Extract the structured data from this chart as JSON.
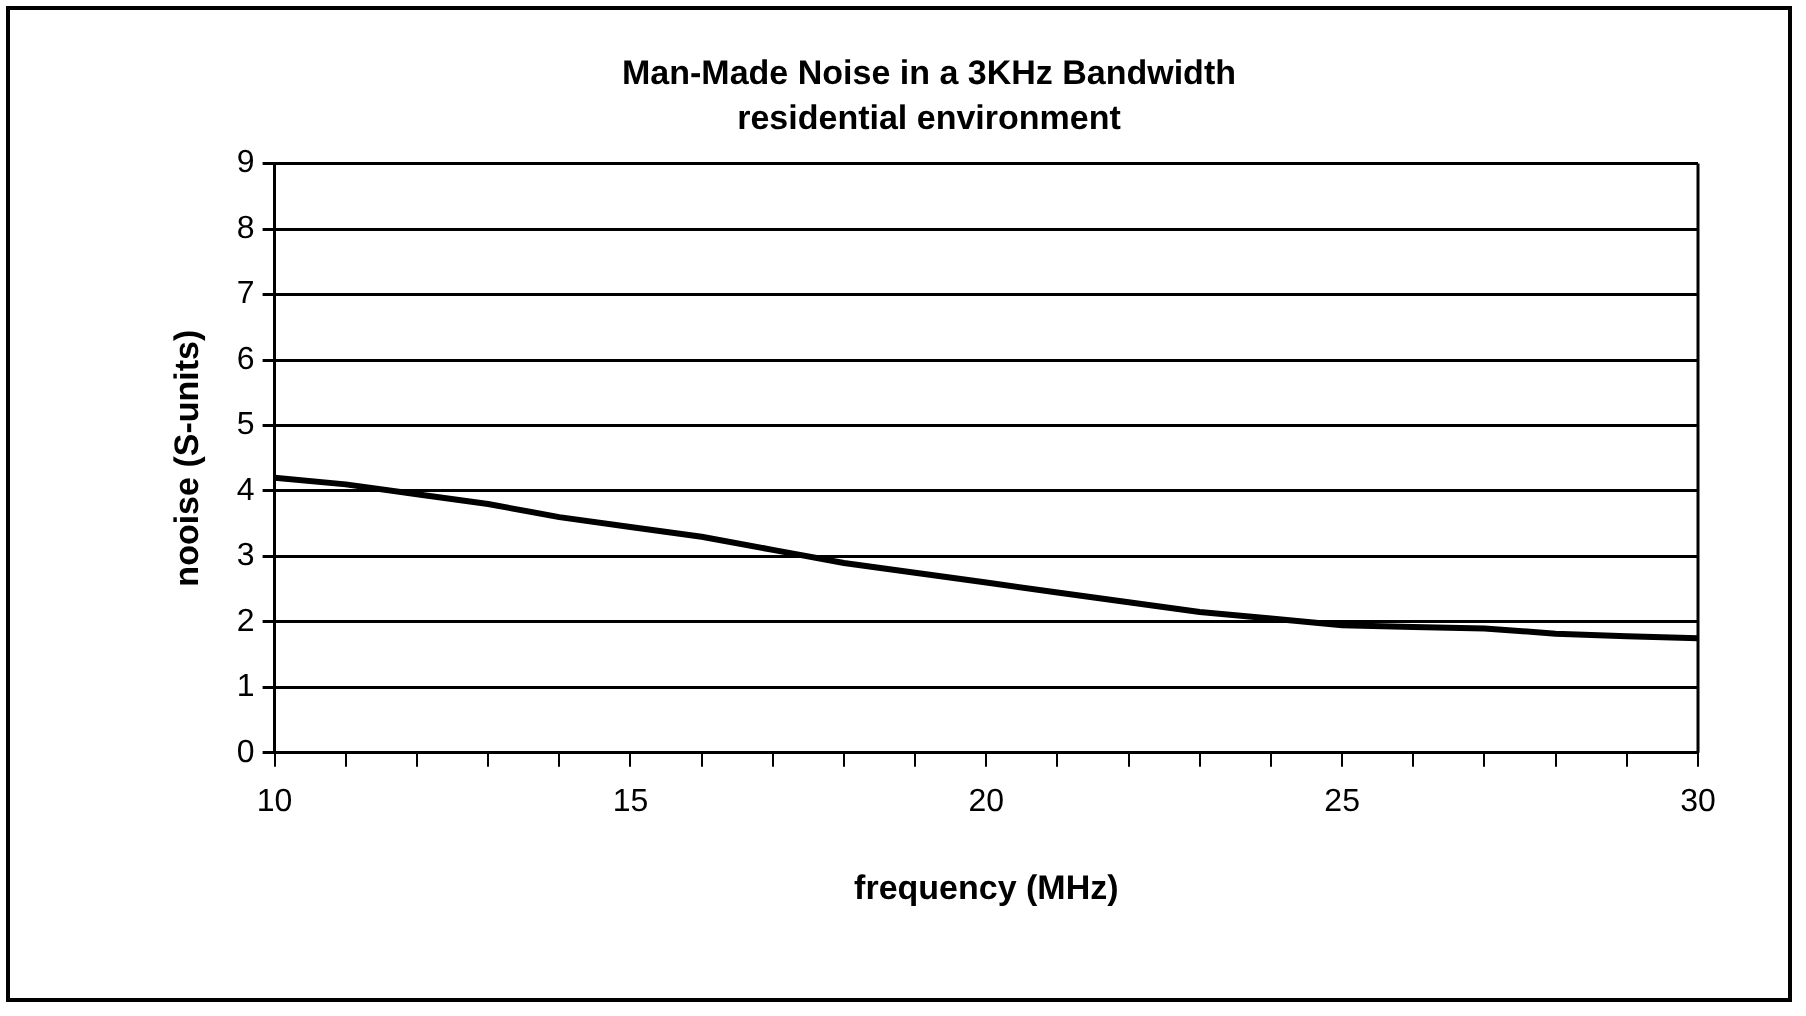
{
  "chart_data": {
    "type": "line",
    "title": "Man-Made Noise in a 3KHz Bandwidth",
    "subtitle": "residential environment",
    "xlabel": "frequency (MHz)",
    "ylabel": "nooise (S-units)",
    "x": [
      10,
      11,
      12,
      13,
      14,
      15,
      16,
      17,
      18,
      19,
      20,
      21,
      22,
      23,
      24,
      25,
      26,
      27,
      28,
      29,
      30
    ],
    "series": [
      {
        "color": "#000000",
        "values": [
          4.2,
          4.1,
          3.95,
          3.8,
          3.6,
          3.45,
          3.3,
          3.1,
          2.9,
          2.75,
          2.6,
          2.45,
          2.3,
          2.15,
          2.05,
          1.95,
          1.92,
          1.9,
          1.82,
          1.78,
          1.75
        ]
      }
    ],
    "xlim": [
      10,
      30
    ],
    "xticks": [
      10,
      {
        "value": 11,
        "label": null
      },
      {
        "value": 12,
        "label": null
      },
      {
        "value": 13,
        "label": null
      },
      {
        "value": 14,
        "label": null
      },
      15,
      {
        "value": 16,
        "label": null
      },
      {
        "value": 17,
        "label": null
      },
      {
        "value": 18,
        "label": null
      },
      {
        "value": 19,
        "label": null
      },
      20,
      {
        "value": 21,
        "label": null
      },
      {
        "value": 22,
        "label": null
      },
      {
        "value": 23,
        "label": null
      },
      {
        "value": 24,
        "label": null
      },
      25,
      {
        "value": 26,
        "label": null
      },
      {
        "value": 27,
        "label": null
      },
      {
        "value": 28,
        "label": null
      },
      {
        "value": 29,
        "label": null
      },
      30
    ],
    "ylim": [
      0,
      9
    ],
    "yticks": [
      0,
      1,
      2,
      3,
      4,
      5,
      6,
      7,
      8,
      9
    ],
    "grid": "y",
    "legend": false,
    "marker": "none",
    "line_style": "solid"
  }
}
